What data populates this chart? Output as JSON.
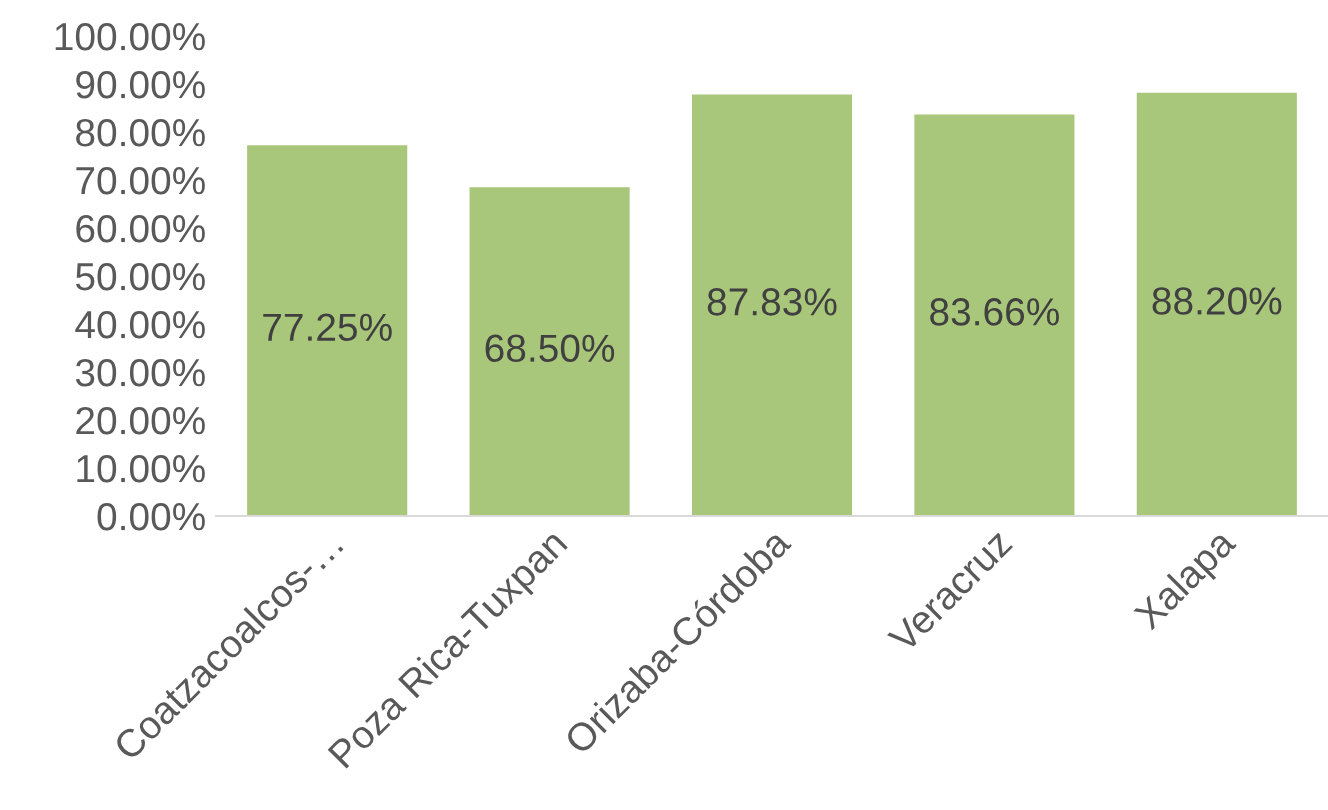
{
  "chart_data": {
    "type": "bar",
    "categories": [
      "Coatzacoalcos-…",
      "Poza Rica-Tuxpan",
      "Orizaba-Córdoba",
      "Veracruz",
      "Xalapa"
    ],
    "values": [
      77.25,
      68.5,
      87.83,
      83.66,
      88.2
    ],
    "value_labels": [
      "77.25%",
      "68.50%",
      "87.83%",
      "83.66%",
      "88.20%"
    ],
    "color": "#a9c77b",
    "ylim": [
      0,
      100
    ],
    "yticks": [
      {
        "value": 0,
        "label": "0.00%"
      },
      {
        "value": 10,
        "label": "10.00%"
      },
      {
        "value": 20,
        "label": "20.00%"
      },
      {
        "value": 30,
        "label": "30.00%"
      },
      {
        "value": 40,
        "label": "40.00%"
      },
      {
        "value": 50,
        "label": "50.00%"
      },
      {
        "value": 60,
        "label": "60.00%"
      },
      {
        "value": 70,
        "label": "70.00%"
      },
      {
        "value": 80,
        "label": "80.00%"
      },
      {
        "value": 90,
        "label": "90.00%"
      },
      {
        "value": 100,
        "label": "100.00%"
      }
    ],
    "grid": false
  }
}
